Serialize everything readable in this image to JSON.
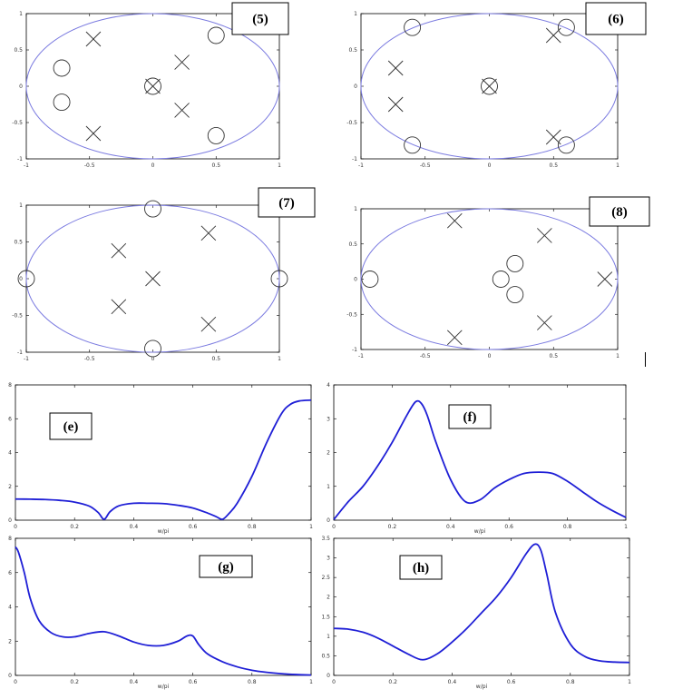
{
  "chart_data": [
    {
      "type": "scatter",
      "panel_label": "(5)",
      "xlim": [
        -1,
        1
      ],
      "ylim": [
        -1,
        1
      ],
      "xticks": [
        "-1",
        "-0.5",
        "0",
        "0.5",
        "1"
      ],
      "yticks": [
        "1",
        "0.5",
        "0",
        "-0.5",
        "-1"
      ],
      "unit_circle": true,
      "zeros": [
        [
          -0.72,
          0.25
        ],
        [
          -0.72,
          -0.22
        ],
        [
          0.5,
          0.7
        ],
        [
          0.5,
          -0.68
        ],
        [
          0,
          0
        ]
      ],
      "poles": [
        [
          -0.47,
          0.65
        ],
        [
          -0.47,
          -0.65
        ],
        [
          0.23,
          0.33
        ],
        [
          0.23,
          -0.33
        ],
        [
          0,
          0
        ]
      ]
    },
    {
      "type": "scatter",
      "panel_label": "(6)",
      "xlim": [
        -1,
        1
      ],
      "ylim": [
        -1,
        1
      ],
      "xticks": [
        "-1",
        "-0.5",
        "0",
        "0.5",
        "1"
      ],
      "yticks": [
        "1",
        "0.5",
        "0",
        "-0.5",
        "-1"
      ],
      "unit_circle": true,
      "zeros": [
        [
          -0.6,
          0.81
        ],
        [
          -0.6,
          -0.81
        ],
        [
          0.6,
          0.81
        ],
        [
          0.6,
          -0.81
        ],
        [
          0,
          0
        ]
      ],
      "poles": [
        [
          -0.73,
          0.25
        ],
        [
          -0.73,
          -0.25
        ],
        [
          0.5,
          0.7
        ],
        [
          0.5,
          -0.7
        ],
        [
          0,
          0
        ]
      ]
    },
    {
      "type": "scatter",
      "panel_label": "(7)",
      "xlim": [
        -1,
        1
      ],
      "ylim": [
        -1,
        1
      ],
      "xticks": [
        "-1",
        "-0.5",
        "0",
        "0.5",
        "1"
      ],
      "yticks": [
        "1",
        "0.5",
        "0",
        "-0.5",
        "-1"
      ],
      "unit_circle": true,
      "zeros": [
        [
          -1,
          0
        ],
        [
          1,
          0
        ],
        [
          0,
          0.95
        ],
        [
          0,
          -0.95
        ]
      ],
      "poles": [
        [
          -0.27,
          0.38
        ],
        [
          -0.27,
          -0.38
        ],
        [
          0,
          0
        ],
        [
          0.44,
          0.62
        ],
        [
          0.44,
          -0.62
        ]
      ]
    },
    {
      "type": "scatter",
      "panel_label": "(8)",
      "xlim": [
        -1,
        1
      ],
      "ylim": [
        -1,
        1
      ],
      "xticks": [
        "-1",
        "-0.5",
        "0",
        "0.5",
        "1"
      ],
      "yticks": [
        "1",
        "0.5",
        "0",
        "-0.5",
        "-1"
      ],
      "unit_circle": true,
      "zeros": [
        [
          -0.93,
          0
        ],
        [
          0.09,
          0
        ],
        [
          0.2,
          0.22
        ],
        [
          0.2,
          -0.22
        ]
      ],
      "poles": [
        [
          -0.27,
          0.83
        ],
        [
          -0.27,
          -0.83
        ],
        [
          0.43,
          0.62
        ],
        [
          0.43,
          -0.62
        ],
        [
          0.9,
          0
        ]
      ]
    },
    {
      "type": "line",
      "panel_label": "(e)",
      "xlabel": "w/pi",
      "xlim": [
        0,
        1
      ],
      "ylim": [
        0,
        8
      ],
      "xticks": [
        "0",
        "0.2",
        "0.4",
        "0.6",
        "0.8",
        "1"
      ],
      "yticks": [
        "8",
        "6",
        "4",
        "2",
        "0"
      ],
      "series": [
        {
          "x": [
            0,
            0.05,
            0.1,
            0.15,
            0.2,
            0.25,
            0.28,
            0.3,
            0.32,
            0.35,
            0.4,
            0.45,
            0.5,
            0.55,
            0.6,
            0.65,
            0.68,
            0.7,
            0.72,
            0.75,
            0.8,
            0.85,
            0.9,
            0.93,
            0.96,
            1.0
          ],
          "y": [
            1.25,
            1.24,
            1.22,
            1.17,
            1.07,
            0.83,
            0.45,
            0.05,
            0.5,
            0.85,
            1.0,
            1.0,
            0.98,
            0.88,
            0.72,
            0.42,
            0.2,
            0.05,
            0.35,
            1.0,
            2.6,
            4.6,
            6.3,
            6.85,
            7.05,
            7.1
          ]
        }
      ]
    },
    {
      "type": "line",
      "panel_label": "(f)",
      "xlabel": "w/pi",
      "xlim": [
        0,
        1
      ],
      "ylim": [
        0,
        4
      ],
      "xticks": [
        "0",
        "0.2",
        "0.4",
        "0.6",
        "0.8",
        "1"
      ],
      "yticks": [
        "4",
        "3",
        "2",
        "1",
        "0"
      ],
      "series": [
        {
          "x": [
            0,
            0.05,
            0.1,
            0.15,
            0.2,
            0.25,
            0.28,
            0.3,
            0.32,
            0.35,
            0.4,
            0.45,
            0.5,
            0.55,
            0.6,
            0.65,
            0.7,
            0.75,
            0.8,
            0.85,
            0.9,
            0.95,
            1.0
          ],
          "y": [
            0.02,
            0.55,
            1.0,
            1.6,
            2.3,
            3.1,
            3.5,
            3.45,
            3.1,
            2.3,
            1.2,
            0.55,
            0.6,
            0.95,
            1.2,
            1.38,
            1.42,
            1.38,
            1.15,
            0.85,
            0.55,
            0.3,
            0.08
          ]
        }
      ]
    },
    {
      "type": "line",
      "panel_label": "(g)",
      "xlabel": "w/pi",
      "xlim": [
        0,
        1
      ],
      "ylim": [
        0,
        8
      ],
      "xticks": [
        "0",
        "0.2",
        "0.4",
        "0.6",
        "0.8",
        "1"
      ],
      "yticks": [
        "8",
        "6",
        "4",
        "2",
        "0"
      ],
      "series": [
        {
          "x": [
            0,
            0.01,
            0.03,
            0.05,
            0.08,
            0.12,
            0.16,
            0.2,
            0.25,
            0.3,
            0.35,
            0.4,
            0.45,
            0.5,
            0.55,
            0.58,
            0.6,
            0.62,
            0.65,
            0.7,
            0.75,
            0.8,
            0.85,
            0.9,
            0.95,
            1.0
          ],
          "y": [
            7.5,
            7.2,
            6.0,
            4.5,
            3.2,
            2.5,
            2.25,
            2.25,
            2.45,
            2.55,
            2.3,
            1.95,
            1.75,
            1.75,
            2.0,
            2.3,
            2.3,
            1.8,
            1.25,
            0.8,
            0.5,
            0.3,
            0.18,
            0.1,
            0.05,
            0.02
          ]
        }
      ]
    },
    {
      "type": "line",
      "panel_label": "(h)",
      "xlabel": "w/pi",
      "xlim": [
        0,
        1
      ],
      "ylim": [
        0,
        3.5
      ],
      "xticks": [
        "0",
        "0.2",
        "0.4",
        "0.6",
        "0.8",
        "1"
      ],
      "yticks": [
        "3.5",
        "3",
        "2.5",
        "2",
        "1.5",
        "1",
        "0.5",
        "0"
      ],
      "series": [
        {
          "x": [
            0,
            0.05,
            0.1,
            0.15,
            0.2,
            0.25,
            0.3,
            0.35,
            0.4,
            0.45,
            0.5,
            0.55,
            0.6,
            0.65,
            0.68,
            0.7,
            0.72,
            0.75,
            0.8,
            0.85,
            0.9,
            0.95,
            1.0
          ],
          "y": [
            1.2,
            1.18,
            1.1,
            0.95,
            0.75,
            0.55,
            0.4,
            0.55,
            0.85,
            1.2,
            1.6,
            2.0,
            2.5,
            3.1,
            3.35,
            3.2,
            2.6,
            1.6,
            0.8,
            0.48,
            0.37,
            0.34,
            0.33
          ]
        }
      ]
    }
  ],
  "colors": {
    "curve": "#1f1fd6",
    "unit_circle": "#7b7be0",
    "marker": "#333333",
    "frame": "#000000"
  }
}
